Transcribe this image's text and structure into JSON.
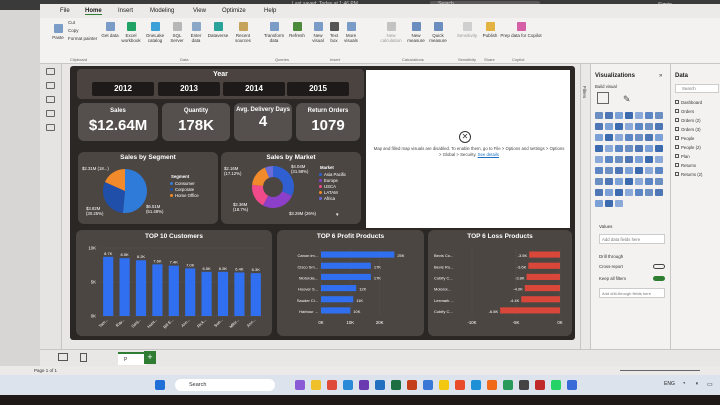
{
  "titlebar": {
    "title": "Last saved: Today at 1:46 PM",
    "search": "Search",
    "user": "Signin"
  },
  "menu": [
    "File",
    "Home",
    "Insert",
    "Modeling",
    "View",
    "Optimize",
    "Help"
  ],
  "ribbon": {
    "buttons": [
      "Paste",
      "Get data",
      "Excel workbook",
      "OneLake catalog",
      "SQL Server",
      "Enter data",
      "Dataverse",
      "Recent sources",
      "Transform data",
      "Refresh",
      "New visual",
      "Text box",
      "More visuals",
      "New calculation",
      "New measure",
      "Quick measure",
      "Sensitivity",
      "Publish",
      "Prep data for Copilot"
    ],
    "small": [
      "Cut",
      "Copy",
      "Format painter"
    ],
    "groups": [
      "Clipboard",
      "Data",
      "Queries",
      "Insert",
      "Calculations",
      "Sensitivity",
      "Share",
      "Copilot"
    ]
  },
  "dashboard": {
    "year_title": "Year",
    "years": [
      "2012",
      "2013",
      "2014",
      "2015"
    ],
    "kpis": [
      {
        "label": "Sales",
        "value": "$12.64M"
      },
      {
        "label": "Quantity",
        "value": "178K"
      },
      {
        "label": "Avg. Delivery Days",
        "value": "4"
      },
      {
        "label": "Return Orders",
        "value": "1079"
      }
    ],
    "segment": {
      "title": "Sales by Segment",
      "legend_title": "Segment",
      "labels": [
        "$2.31M (18...)",
        "$3.82M (30.25%)",
        "$6.51M (51.48%)"
      ]
    },
    "market": {
      "title": "Sales by Market",
      "legend_title": "Market",
      "labels": [
        "$2.16M (17.12%)",
        "$4.04M (31.98%)",
        "$2.36M (18.7%)",
        "$3.29M (26%)"
      ]
    },
    "map_message": "Map and filled map visuals are disabled. To enable them, go to File > Options and settings > Options > Global > Security.",
    "map_link": "See details"
  },
  "chart_data": [
    {
      "type": "pie",
      "title": "Sales by Segment",
      "categories": [
        "Consumer",
        "Corporate",
        "Home Office"
      ],
      "values": [
        6.51,
        3.82,
        2.31
      ],
      "colors": [
        "#2f7bd9",
        "#1f4fa8",
        "#f08a2a"
      ]
    },
    {
      "type": "pie",
      "title": "Sales by Market",
      "categories": [
        "Asia Pacific",
        "Europe",
        "USCA",
        "LATAM",
        "Africa"
      ],
      "values": [
        4.04,
        3.29,
        2.36,
        2.16,
        0.79
      ],
      "colors": [
        "#2f5fd0",
        "#8c3fc8",
        "#f04a8a",
        "#f08a2a",
        "#6c6cd8"
      ]
    },
    {
      "type": "bar",
      "title": "TOP 10 Customers",
      "categories": [
        "Tam...",
        "Ray...",
        "Sanj...",
        "Hunt...",
        "Bill E...",
        "Ann...",
        "Rick...",
        "Sue...",
        "Mike...",
        "Ann..."
      ],
      "values": [
        8.7,
        8.5,
        8.2,
        7.6,
        7.4,
        7.0,
        6.5,
        6.5,
        6.4,
        6.3
      ],
      "data_labels": [
        "8.7K",
        "8.5K",
        "8.2K",
        "7.6K",
        "7.4K",
        "7.0K",
        "6.5K",
        "6.5K",
        "6.4K",
        "6.3K"
      ],
      "yticks": [
        "10K",
        "5K",
        "0K"
      ],
      "ylim": [
        0,
        10
      ],
      "color": "#2f6ff0"
    },
    {
      "type": "bar",
      "title": "TOP 6 Profit Products",
      "orientation": "horizontal",
      "categories": [
        "Canon im...",
        "Cisco Sm...",
        "Motorola...",
        "Hoover S...",
        "Sauder Cl...",
        "Harbour ..."
      ],
      "values": [
        25,
        17,
        17,
        12,
        11,
        10
      ],
      "data_labels": [
        "25K",
        "17K",
        "17K",
        "12K",
        "11K",
        "10K"
      ],
      "xticks": [
        "0K",
        "10K",
        "20K"
      ],
      "xlim": [
        0,
        30
      ],
      "color": "#2f6ff0"
    },
    {
      "type": "bar",
      "title": "TOP 6 Loss Products",
      "orientation": "horizontal",
      "categories": [
        "Bevis Co...",
        "Bevis Ro...",
        "Cubify C...",
        "Motorol...",
        "Lexmark ...",
        "Cubify C..."
      ],
      "values": [
        -3.5,
        -3.6,
        -3.8,
        -4.0,
        -4.4,
        -6.8
      ],
      "data_labels": [
        "-3.5K",
        "-3.6K",
        "-3.8K",
        "-4.0K",
        "-4.4K",
        "-6.8K"
      ],
      "xticks": [
        "-10K",
        "-5K",
        "0K"
      ],
      "xlim": [
        -10,
        0
      ],
      "color": "#d9473a"
    }
  ],
  "panes": {
    "filters": "Filters",
    "visualizations": "Visualizations",
    "build_visual": "Build visual",
    "data": "Data",
    "search": "Search",
    "data_tables": [
      "Dashboard",
      "Orders",
      "Orders (2)",
      "Orders (3)",
      "People",
      "People (2)",
      "Plan",
      "Returns",
      "Returns (2)"
    ],
    "values": "Values",
    "add_data": "Add data fields here",
    "drill_through": "Drill through",
    "cross_report": "Cross-report",
    "keep_filters": "Keep all filters",
    "add_drill": "Add drill-through fields here"
  },
  "status": {
    "page": "Page 1 of 1",
    "page_tab": "P"
  },
  "taskbar": {
    "search": "Search",
    "lang": "ENG"
  }
}
